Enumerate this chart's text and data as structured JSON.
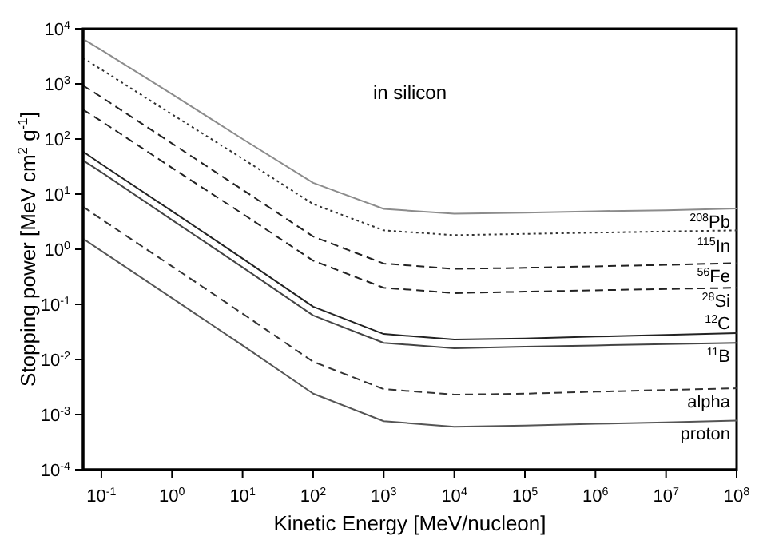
{
  "chart_data": {
    "type": "line",
    "title": "in silicon",
    "xlabel": "Kinetic Energy   [MeV/nucleon]",
    "ylabel": "Stopping power   [MeV cm$^{2}$ g$^{-1}$]",
    "x": [
      0.055,
      0.1,
      1,
      10,
      100,
      1000,
      10000,
      100000,
      1000000,
      10000000,
      100000000
    ],
    "series": [
      {
        "name": "$^{208}$Pb",
        "color": "#8c8c8c",
        "line_style": "solid",
        "values": [
          6500,
          4100,
          650,
          100,
          16,
          5.4,
          4.4,
          4.6,
          4.9,
          5.1,
          5.5
        ]
      },
      {
        "name": "$^{115}$In",
        "color": "#333333",
        "line_style": "dotted",
        "values": [
          2950,
          1820,
          280,
          44,
          6.6,
          2.2,
          1.8,
          1.9,
          2.0,
          2.1,
          2.2
        ]
      },
      {
        "name": "$^{56}$Fe",
        "color": "#222222",
        "line_style": "dashed",
        "values": [
          930,
          575,
          83,
          12,
          1.7,
          0.55,
          0.44,
          0.46,
          0.49,
          0.52,
          0.56
        ]
      },
      {
        "name": "$^{28}$Si",
        "color": "#222222",
        "line_style": "dashed",
        "values": [
          340,
          210,
          30,
          4.4,
          0.62,
          0.2,
          0.16,
          0.17,
          0.18,
          0.19,
          0.2
        ]
      },
      {
        "name": "$^{12}$C",
        "color": "#222222",
        "line_style": "solid",
        "values": [
          59,
          35,
          4.9,
          0.68,
          0.091,
          0.029,
          0.023,
          0.024,
          0.026,
          0.028,
          0.03
        ]
      },
      {
        "name": "$^{11}$B",
        "color": "#444444",
        "line_style": "solid",
        "values": [
          41,
          25,
          3.4,
          0.47,
          0.063,
          0.02,
          0.016,
          0.017,
          0.018,
          0.019,
          0.02
        ]
      },
      {
        "name": "alpha",
        "color": "#333333",
        "line_style": "dashed",
        "values": [
          5.9,
          3.5,
          0.49,
          0.068,
          0.0091,
          0.0029,
          0.0023,
          0.0024,
          0.0026,
          0.0028,
          0.003
        ]
      },
      {
        "name": "proton",
        "color": "#555555",
        "line_style": "solid",
        "values": [
          1.55,
          0.93,
          0.13,
          0.018,
          0.0024,
          0.00076,
          0.0006,
          0.00063,
          0.00068,
          0.00072,
          0.00078
        ]
      }
    ],
    "log": "xy",
    "grid": false,
    "legend": false,
    "marker": "none",
    "xlim": [
      0.055,
      100000000
    ],
    "xticks": [
      {
        "value": 0.1,
        "label": "10$^{-1}$"
      },
      {
        "value": 1,
        "label": "10$^{0}$"
      },
      {
        "value": 10,
        "label": "10$^{1}$"
      },
      {
        "value": 100,
        "label": "10$^{2}$"
      },
      {
        "value": 1000,
        "label": "10$^{3}$"
      },
      {
        "value": 10000,
        "label": "10$^{4}$"
      },
      {
        "value": 100000,
        "label": "10$^{5}$"
      },
      {
        "value": 1000000,
        "label": "10$^{6}$"
      },
      {
        "value": 10000000,
        "label": "10$^{7}$"
      },
      {
        "value": 100000000,
        "label": "10$^{8}$"
      }
    ],
    "ylim": [
      0.0001,
      10000
    ],
    "yticks": [
      {
        "value": 0.0001,
        "label": "10$^{-4}$"
      },
      {
        "value": 0.001,
        "label": "10$^{-3}$"
      },
      {
        "value": 0.01,
        "label": "10$^{-2}$"
      },
      {
        "value": 0.1,
        "label": "10$^{-1}$"
      },
      {
        "value": 1,
        "label": "10$^{0}$"
      },
      {
        "value": 10,
        "label": "10$^{1}$"
      },
      {
        "value": 100,
        "label": "10$^{2}$"
      },
      {
        "value": 1000,
        "label": "10$^{3}$"
      },
      {
        "value": 10000,
        "label": "10$^{4}$"
      }
    ]
  }
}
